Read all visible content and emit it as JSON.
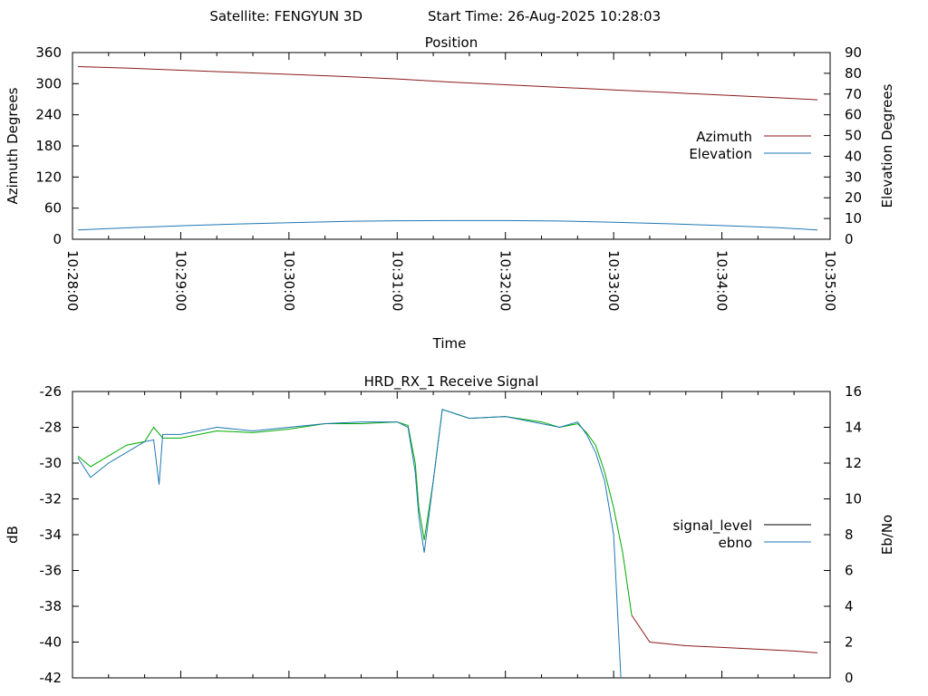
{
  "header": {
    "satellite_label": "Satellite: FENGYUN 3D",
    "start_time_label": "Start Time: 26-Aug-2025 10:28:03"
  },
  "chart_data": [
    {
      "id": "position",
      "type": "line",
      "title": "Position",
      "xlabel": "Time",
      "ylabel": "Azimuth Degrees",
      "y2label": "Elevation Degrees",
      "xlim": [
        "10:28:00",
        "10:35:00"
      ],
      "x_ticks": [
        "10:28:00",
        "10:29:00",
        "10:30:00",
        "10:31:00",
        "10:32:00",
        "10:33:00",
        "10:34:00",
        "10:35:00"
      ],
      "ylim": [
        0,
        360
      ],
      "y_ticks": [
        0,
        60,
        120,
        180,
        240,
        300,
        360
      ],
      "y2lim": [
        0,
        90
      ],
      "y2_ticks": [
        0,
        10,
        20,
        30,
        40,
        50,
        60,
        70,
        80,
        90
      ],
      "legend_position": "right",
      "grid": false,
      "series": [
        {
          "name": "Azimuth",
          "axis": "y",
          "color": "#8b1a1a",
          "x": [
            "10:28:03",
            "10:28:30",
            "10:29:00",
            "10:29:30",
            "10:30:00",
            "10:30:30",
            "10:31:00",
            "10:31:30",
            "10:32:00",
            "10:32:30",
            "10:33:00",
            "10:33:30",
            "10:34:00",
            "10:34:30",
            "10:34:53"
          ],
          "values": [
            333,
            330,
            326,
            322,
            318,
            314,
            309,
            303,
            298,
            293,
            288,
            283,
            278,
            273,
            269
          ]
        },
        {
          "name": "Elevation",
          "axis": "y2",
          "color": "#1f77b4",
          "x": [
            "10:28:03",
            "10:28:30",
            "10:29:00",
            "10:29:30",
            "10:30:00",
            "10:30:30",
            "10:31:00",
            "10:31:30",
            "10:32:00",
            "10:32:30",
            "10:33:00",
            "10:33:30",
            "10:34:00",
            "10:34:30",
            "10:34:53"
          ],
          "values": [
            4.5,
            5.5,
            6.5,
            7.3,
            8.0,
            8.6,
            8.9,
            9.0,
            9.0,
            8.8,
            8.2,
            7.5,
            6.6,
            5.6,
            4.5
          ]
        }
      ]
    },
    {
      "id": "signal",
      "type": "line",
      "title": "HRD_RX_1 Receive Signal",
      "ylabel": "dB",
      "y2label": "Eb/No",
      "xlim": [
        "10:28:00",
        "10:35:00"
      ],
      "ylim": [
        -42,
        -26
      ],
      "y_ticks": [
        -42,
        -40,
        -38,
        -36,
        -34,
        -32,
        -30,
        -28,
        -26
      ],
      "y2lim": [
        0,
        16
      ],
      "y2_ticks": [
        0,
        2,
        4,
        6,
        8,
        10,
        12,
        14,
        16
      ],
      "legend_position": "right",
      "grid": false,
      "series": [
        {
          "name": "signal_level",
          "axis": "y",
          "color": "#000000",
          "segment_colors": [
            "#00aa00",
            "#8b1a1a"
          ],
          "x": [
            "10:28:03",
            "10:28:10",
            "10:28:20",
            "10:28:30",
            "10:28:40",
            "10:28:45",
            "10:28:50",
            "10:29:00",
            "10:29:20",
            "10:29:40",
            "10:30:00",
            "10:30:20",
            "10:30:40",
            "10:31:00",
            "10:31:06",
            "10:31:10",
            "10:31:12",
            "10:31:15",
            "10:31:20",
            "10:31:25",
            "10:31:40",
            "10:32:00",
            "10:32:20",
            "10:32:30",
            "10:32:40",
            "10:32:45",
            "10:32:50",
            "10:32:55",
            "10:33:00",
            "10:33:05",
            "10:33:10",
            "10:33:20",
            "10:33:40",
            "10:34:00",
            "10:34:20",
            "10:34:40",
            "10:34:53"
          ],
          "values": [
            -29.6,
            -30.2,
            -29.6,
            -29.0,
            -28.8,
            -28.0,
            -28.6,
            -28.6,
            -28.2,
            -28.3,
            -28.1,
            -27.8,
            -27.8,
            -27.7,
            -27.9,
            -30.0,
            -32.5,
            -34.3,
            -31.0,
            -27.0,
            -27.5,
            -27.4,
            -27.7,
            -28.0,
            -27.8,
            -28.3,
            -29.0,
            -30.5,
            -32.5,
            -35.0,
            -38.5,
            -40.0,
            -40.2,
            -40.3,
            -40.4,
            -40.5,
            -40.6
          ]
        },
        {
          "name": "ebno",
          "axis": "y2",
          "color": "#1f77b4",
          "x": [
            "10:28:03",
            "10:28:10",
            "10:28:20",
            "10:28:30",
            "10:28:40",
            "10:28:45",
            "10:28:48",
            "10:28:50",
            "10:29:00",
            "10:29:20",
            "10:29:40",
            "10:30:00",
            "10:30:20",
            "10:30:40",
            "10:31:00",
            "10:31:06",
            "10:31:10",
            "10:31:12",
            "10:31:15",
            "10:31:20",
            "10:31:25",
            "10:31:40",
            "10:32:00",
            "10:32:20",
            "10:32:30",
            "10:32:40",
            "10:32:45",
            "10:32:50",
            "10:32:55",
            "10:33:00",
            "10:33:04"
          ],
          "values": [
            12.3,
            11.2,
            12.0,
            12.6,
            13.2,
            13.3,
            10.8,
            13.6,
            13.6,
            14.0,
            13.8,
            14.0,
            14.2,
            14.3,
            14.3,
            14.0,
            11.5,
            9.0,
            7.0,
            11.0,
            15.0,
            14.5,
            14.6,
            14.2,
            14.0,
            14.3,
            13.6,
            12.6,
            11.0,
            8.0,
            0
          ]
        }
      ]
    }
  ]
}
